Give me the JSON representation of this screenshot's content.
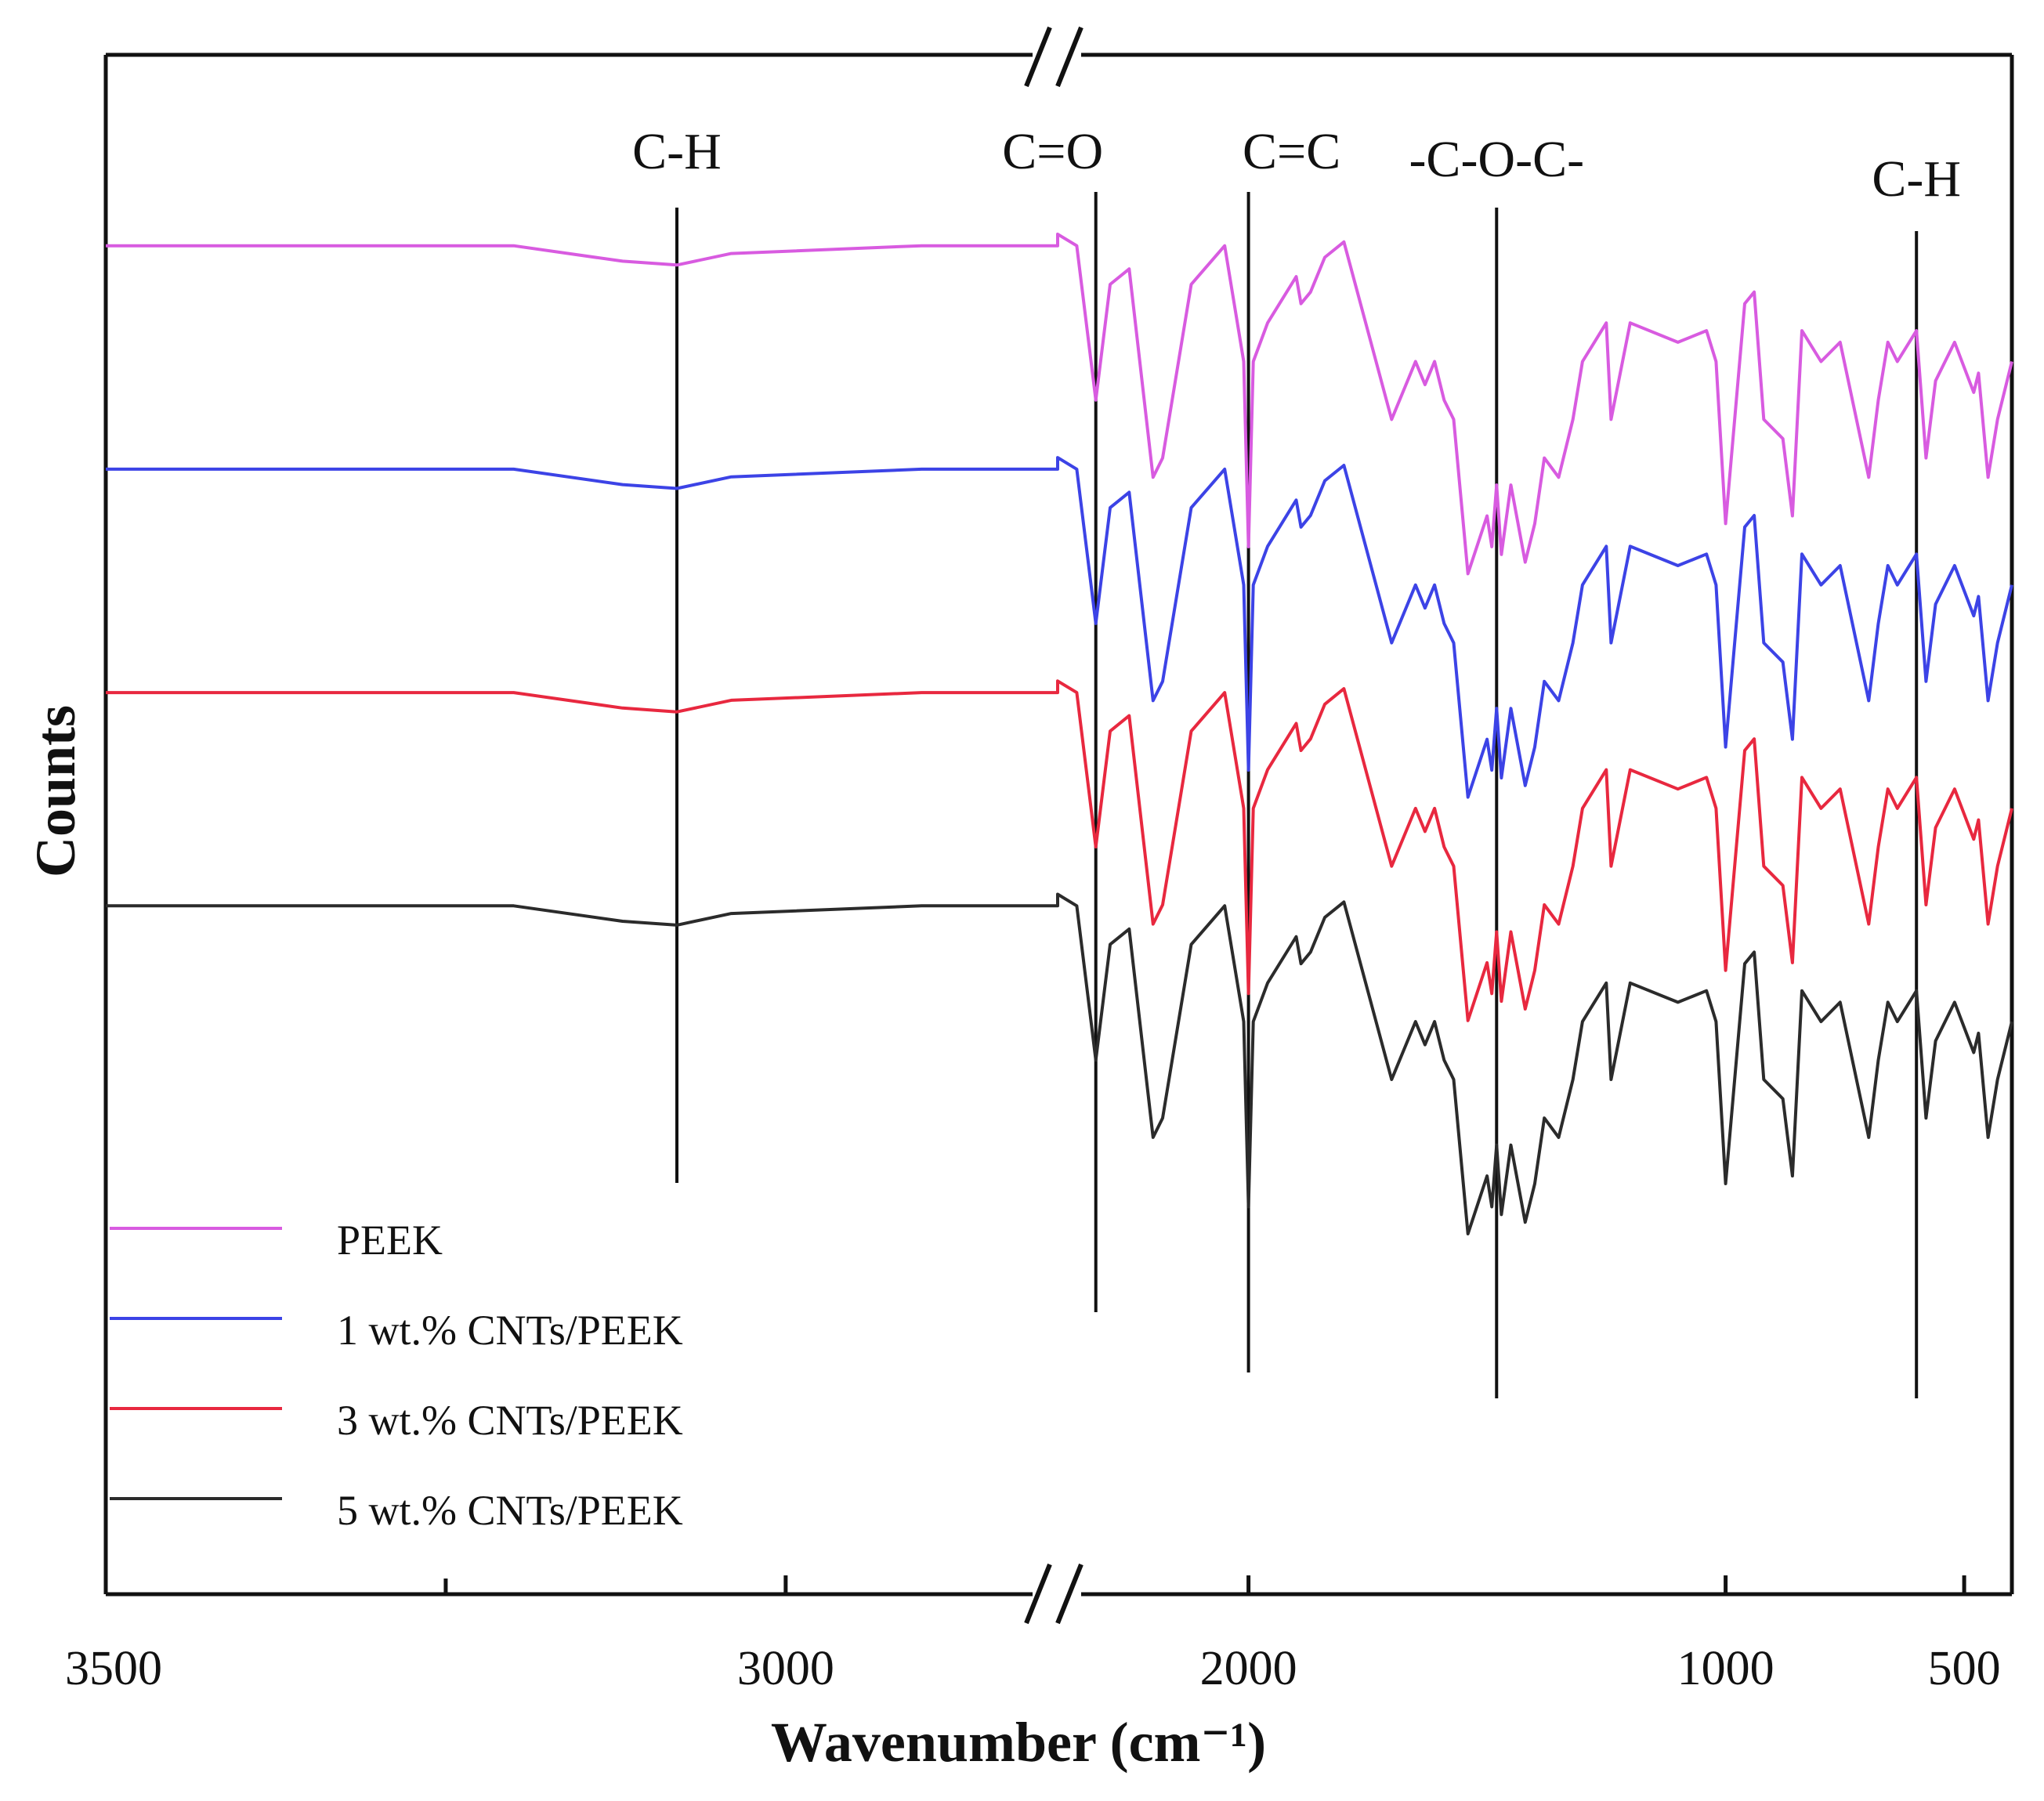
{
  "chart_data": {
    "type": "line",
    "title": "",
    "xlabel": "Wavenumber (cm⁻¹)",
    "ylabel": "Counts",
    "x_axis": {
      "reversed": true,
      "broken": true,
      "segments": [
        [
          3500,
          2800
        ],
        [
          2400,
          400
        ]
      ],
      "tick_labels": [
        "3500",
        "3000",
        "2000",
        "1000",
        "500"
      ],
      "tick_values": [
        3500,
        3000,
        2000,
        1000,
        500
      ],
      "minor_ticks": [
        3250
      ]
    },
    "grid": false,
    "legend_position": "bottom-left",
    "annotations": [
      {
        "label": "C-H",
        "x": 3080
      },
      {
        "label": "C=O",
        "x": 2320
      },
      {
        "label": "C=C",
        "x": 2000
      },
      {
        "label": "-C-O-C-",
        "x": 1480
      },
      {
        "label": "C-H",
        "x": 600
      }
    ],
    "series": [
      {
        "name": "PEEK",
        "color": "#d85be0",
        "baseline": 1.0
      },
      {
        "name": "1 wt.% CNTs/PEEK",
        "color": "#3c43e6",
        "baseline": 0.78
      },
      {
        "name": "3 wt.% CNTs/PEEK",
        "color": "#e8283f",
        "baseline": 0.56
      },
      {
        "name": "5 wt.% CNTs/PEEK",
        "color": "#2b2b2b",
        "baseline": 0.35
      }
    ],
    "spectrum_profile_x": [
      3500,
      3200,
      3120,
      3080,
      3040,
      2900,
      2800,
      2400,
      2360,
      2320,
      2290,
      2250,
      2200,
      2180,
      2120,
      2050,
      2010,
      2000,
      1990,
      1960,
      1900,
      1890,
      1870,
      1840,
      1800,
      1700,
      1650,
      1630,
      1610,
      1590,
      1570,
      1540,
      1500,
      1490,
      1480,
      1470,
      1450,
      1420,
      1400,
      1380,
      1350,
      1320,
      1300,
      1250,
      1240,
      1200,
      1100,
      1040,
      1020,
      1000,
      960,
      940,
      920,
      880,
      860,
      840,
      800,
      760,
      700,
      680,
      660,
      640,
      600,
      580,
      560,
      520,
      480,
      470,
      450,
      430,
      400
    ],
    "spectrum_profile_y": [
      0,
      0,
      -0.04,
      -0.05,
      -0.02,
      0,
      0,
      0.03,
      0,
      -0.4,
      -0.1,
      -0.06,
      -0.6,
      -0.55,
      -0.1,
      0,
      -0.3,
      -0.78,
      -0.3,
      -0.2,
      -0.08,
      -0.15,
      -0.12,
      -0.03,
      0.01,
      -0.45,
      -0.3,
      -0.36,
      -0.3,
      -0.4,
      -0.45,
      -0.85,
      -0.7,
      -0.78,
      -0.62,
      -0.8,
      -0.62,
      -0.82,
      -0.72,
      -0.55,
      -0.6,
      -0.45,
      -0.3,
      -0.2,
      -0.45,
      -0.2,
      -0.25,
      -0.22,
      -0.3,
      -0.72,
      -0.15,
      -0.12,
      -0.45,
      -0.5,
      -0.7,
      -0.22,
      -0.3,
      -0.25,
      -0.6,
      -0.4,
      -0.25,
      -0.3,
      -0.22,
      -0.55,
      -0.35,
      -0.25,
      -0.38,
      -0.33,
      -0.6,
      -0.45,
      -0.3
    ]
  }
}
